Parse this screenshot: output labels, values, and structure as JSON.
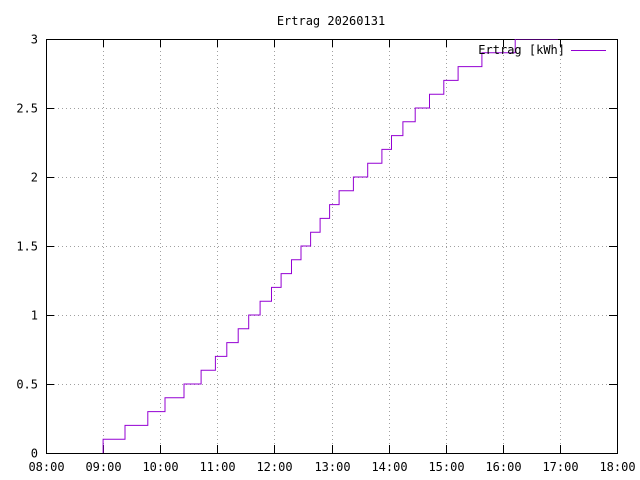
{
  "chart_data": {
    "type": "line",
    "title": "Ertrag 20260131",
    "xlabel": "",
    "ylabel": "",
    "x_ticks": [
      "08:00",
      "09:00",
      "10:00",
      "11:00",
      "12:00",
      "13:00",
      "14:00",
      "15:00",
      "16:00",
      "17:00",
      "18:00"
    ],
    "y_ticks": [
      "0",
      "0.5",
      "1",
      "1.5",
      "2",
      "2.5",
      "3"
    ],
    "xlim": [
      "08:00",
      "18:00"
    ],
    "ylim": [
      0,
      3
    ],
    "grid": true,
    "legend_position": "top-right",
    "line_style": "step",
    "series": [
      {
        "name": "Ertrag [kWh]",
        "color": "#9400d3",
        "x": [
          "09:00",
          "09:00",
          "09:23",
          "09:47",
          "10:05",
          "10:25",
          "10:43",
          "10:58",
          "11:10",
          "11:22",
          "11:33",
          "11:45",
          "11:57",
          "12:07",
          "12:18",
          "12:28",
          "12:38",
          "12:48",
          "12:58",
          "13:08",
          "13:23",
          "13:38",
          "13:53",
          "14:03",
          "14:15",
          "14:28",
          "14:43",
          "14:58",
          "15:13",
          "15:38",
          "16:13",
          "16:18",
          "16:58"
        ],
        "values": [
          0,
          0.1,
          0.2,
          0.3,
          0.4,
          0.5,
          0.6,
          0.7,
          0.8,
          0.9,
          1.0,
          1.1,
          1.2,
          1.3,
          1.4,
          1.5,
          1.6,
          1.7,
          1.8,
          1.9,
          2.0,
          2.1,
          2.2,
          2.3,
          2.4,
          2.5,
          2.6,
          2.7,
          2.8,
          2.9,
          3.0,
          3.0,
          3.0
        ]
      }
    ]
  }
}
